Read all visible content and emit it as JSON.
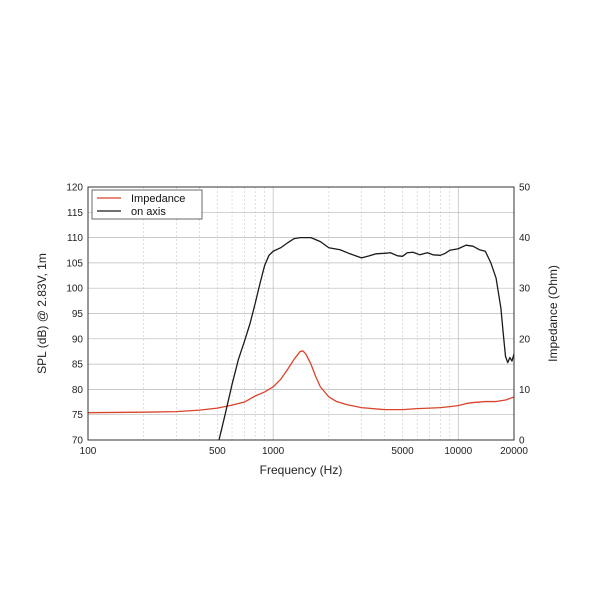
{
  "chart_data": {
    "type": "line",
    "xlabel": "Frequency (Hz)",
    "ylabel_left": "SPL (dB) @ 2.83V, 1m",
    "ylabel_right": "Impedance (Ohm)",
    "x_scale": "log",
    "xlim": [
      100,
      20000
    ],
    "ylim_left": [
      70,
      120
    ],
    "ylim_right": [
      0,
      50
    ],
    "x_ticks": [
      100,
      500,
      1000,
      5000,
      10000,
      20000
    ],
    "y_ticks_left": [
      70,
      75,
      80,
      85,
      90,
      95,
      100,
      105,
      110,
      115,
      120
    ],
    "y_ticks_right": [
      0,
      10,
      20,
      30,
      40,
      50
    ],
    "grid": true,
    "legend_position": "top-left",
    "series": [
      {
        "name": "Impedance",
        "axis": "right",
        "color": "#d9442c",
        "points": [
          [
            100,
            5.4
          ],
          [
            200,
            5.5
          ],
          [
            300,
            5.6
          ],
          [
            400,
            5.9
          ],
          [
            500,
            6.3
          ],
          [
            600,
            6.9
          ],
          [
            700,
            7.5
          ],
          [
            800,
            8.7
          ],
          [
            900,
            9.5
          ],
          [
            1000,
            10.5
          ],
          [
            1100,
            12.0
          ],
          [
            1200,
            14.0
          ],
          [
            1300,
            16.0
          ],
          [
            1400,
            17.5
          ],
          [
            1450,
            17.6
          ],
          [
            1500,
            17.0
          ],
          [
            1600,
            15.0
          ],
          [
            1700,
            12.5
          ],
          [
            1800,
            10.5
          ],
          [
            2000,
            8.5
          ],
          [
            2200,
            7.6
          ],
          [
            2500,
            7.0
          ],
          [
            3000,
            6.4
          ],
          [
            4000,
            6.0
          ],
          [
            5000,
            6.0
          ],
          [
            6000,
            6.2
          ],
          [
            7000,
            6.3
          ],
          [
            8000,
            6.4
          ],
          [
            9000,
            6.6
          ],
          [
            10000,
            6.8
          ],
          [
            11000,
            7.2
          ],
          [
            12000,
            7.4
          ],
          [
            14000,
            7.6
          ],
          [
            16000,
            7.6
          ],
          [
            18000,
            7.9
          ],
          [
            20000,
            8.5
          ]
        ]
      },
      {
        "name": "on axis",
        "axis": "left",
        "color": "#1a1a1a",
        "points": [
          [
            510,
            70.0
          ],
          [
            550,
            75.0
          ],
          [
            600,
            81.0
          ],
          [
            650,
            86.0
          ],
          [
            700,
            89.5
          ],
          [
            750,
            93.0
          ],
          [
            800,
            97.0
          ],
          [
            850,
            101.0
          ],
          [
            900,
            104.5
          ],
          [
            950,
            106.5
          ],
          [
            1000,
            107.3
          ],
          [
            1100,
            108.0
          ],
          [
            1200,
            109.0
          ],
          [
            1300,
            109.8
          ],
          [
            1400,
            110.0
          ],
          [
            1600,
            110.0
          ],
          [
            1800,
            109.2
          ],
          [
            2000,
            108.0
          ],
          [
            2300,
            107.6
          ],
          [
            2600,
            106.8
          ],
          [
            3000,
            106.0
          ],
          [
            3300,
            106.4
          ],
          [
            3600,
            106.8
          ],
          [
            4000,
            106.9
          ],
          [
            4300,
            107.0
          ],
          [
            4700,
            106.4
          ],
          [
            5000,
            106.3
          ],
          [
            5300,
            107.0
          ],
          [
            5700,
            107.1
          ],
          [
            6200,
            106.6
          ],
          [
            6800,
            107.0
          ],
          [
            7300,
            106.6
          ],
          [
            8000,
            106.5
          ],
          [
            8500,
            106.9
          ],
          [
            9000,
            107.5
          ],
          [
            10000,
            107.8
          ],
          [
            11000,
            108.5
          ],
          [
            12000,
            108.3
          ],
          [
            13000,
            107.6
          ],
          [
            14000,
            107.3
          ],
          [
            15000,
            105.0
          ],
          [
            16000,
            102.0
          ],
          [
            17000,
            96.0
          ],
          [
            17500,
            91.0
          ],
          [
            18000,
            86.5
          ],
          [
            18500,
            85.3
          ],
          [
            19000,
            86.3
          ],
          [
            19500,
            85.6
          ],
          [
            20000,
            87.0
          ]
        ]
      }
    ]
  }
}
